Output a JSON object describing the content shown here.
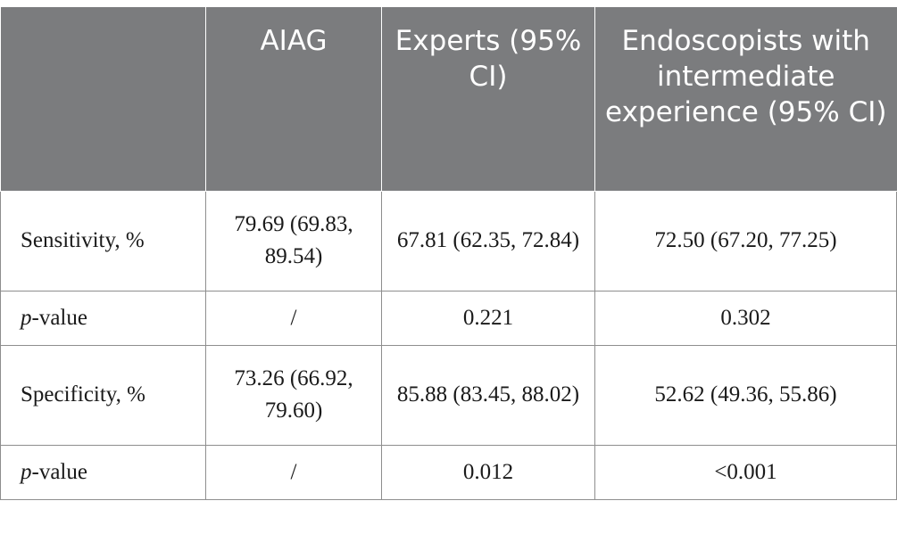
{
  "table": {
    "headers": [
      "",
      "AIAG",
      "Experts (95% CI)",
      "Endoscopists with intermediate experience (95% CI)"
    ],
    "rows": [
      {
        "label": "Sensitivity, %",
        "cells": [
          "79.69 (69.83, 89.54)",
          "67.81 (62.35, 72.84)",
          "72.50 (67.20, 77.25)"
        ]
      },
      {
        "label_italic": "p",
        "label_rest": "-value",
        "cells": [
          "/",
          "0.221",
          "0.302"
        ]
      },
      {
        "label": "Specificity, %",
        "cells": [
          "73.26 (66.92, 79.60)",
          "85.88 (83.45, 88.02)",
          "52.62 (49.36, 55.86)"
        ]
      },
      {
        "label_italic": "p",
        "label_rest": "-value",
        "cells": [
          "/",
          "0.012",
          "<0.001"
        ]
      }
    ]
  }
}
